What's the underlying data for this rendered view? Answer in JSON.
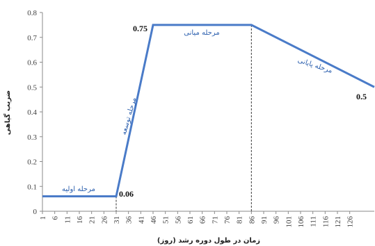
{
  "chart_data": {
    "type": "line",
    "x": [
      1,
      31,
      46,
      86,
      136
    ],
    "series": [
      {
        "values": [
          0.06,
          0.06,
          0.75,
          0.75,
          0.5
        ]
      }
    ],
    "xlabel": "زمان در طول دوره رشد (روز)",
    "ylabel": "ضریب گیاهی",
    "xlim": [
      1,
      136
    ],
    "ylim": [
      0,
      0.8
    ],
    "x_ticks": [
      "1",
      "6",
      "11",
      "16",
      "21",
      "26",
      "31",
      "36",
      "41",
      "46",
      "51",
      "56",
      "61",
      "66",
      "71",
      "76",
      "81",
      "86",
      "91",
      "96",
      "101",
      "106",
      "111",
      "116",
      "121",
      "126"
    ],
    "y_ticks": [
      "0",
      "0.1",
      "0.2",
      "0.3",
      "0.4",
      "0.5",
      "0.6",
      "0.7",
      "0.8"
    ],
    "grid": false,
    "line_color": "#4a7bc8",
    "phase_labels": {
      "initial": "مرحله اولیه",
      "development": "مرحله توسعه",
      "mid": "مرحله میانی",
      "late": "مرحله پایانی"
    },
    "value_labels": [
      "0.06",
      "0.75",
      "0.5"
    ]
  }
}
